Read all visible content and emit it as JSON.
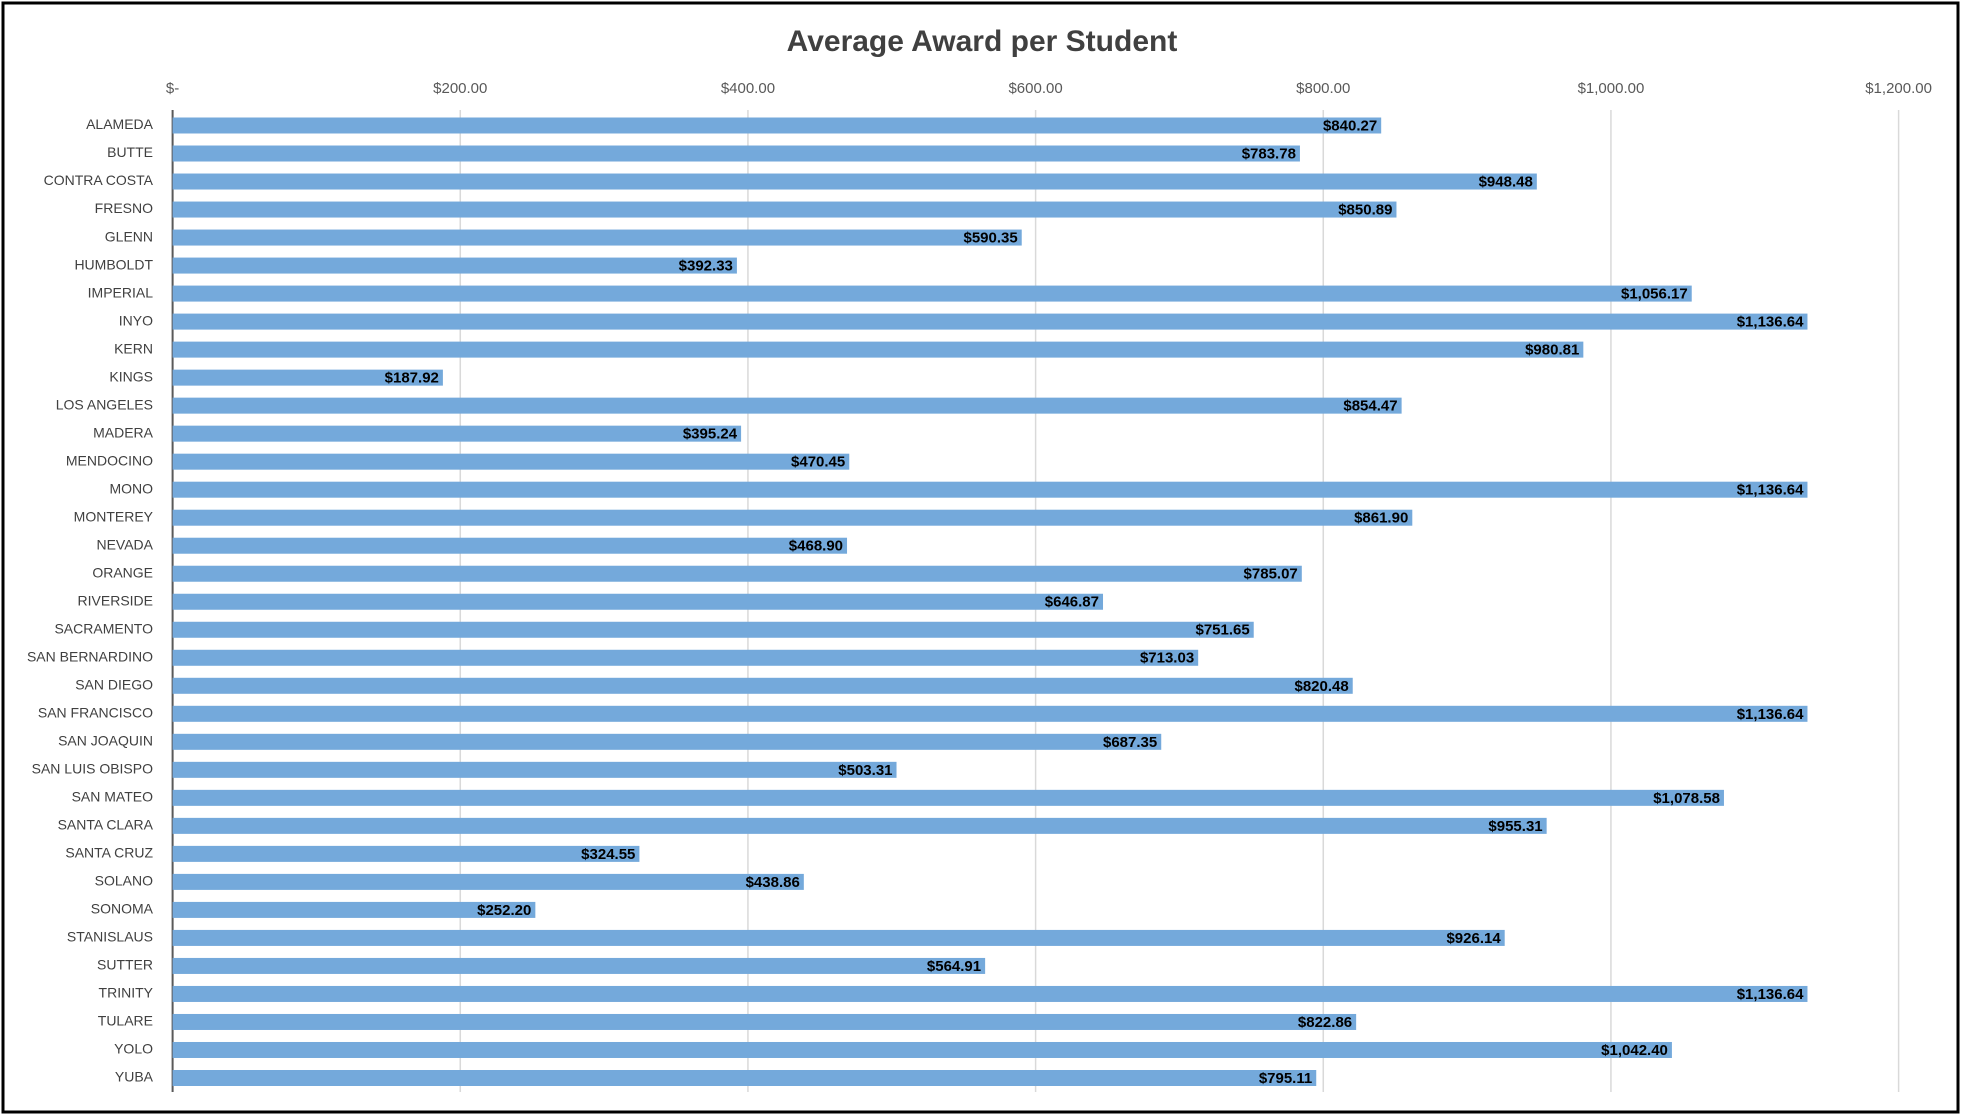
{
  "chart_data": {
    "type": "bar",
    "orientation": "horizontal",
    "title": "Average Award per Student",
    "categories": [
      "ALAMEDA",
      "BUTTE",
      "CONTRA COSTA",
      "FRESNO",
      "GLENN",
      "HUMBOLDT",
      "IMPERIAL",
      "INYO",
      "KERN",
      "KINGS",
      "LOS ANGELES",
      "MADERA",
      "MENDOCINO",
      "MONO",
      "MONTEREY",
      "NEVADA",
      "ORANGE",
      "RIVERSIDE",
      "SACRAMENTO",
      "SAN BERNARDINO",
      "SAN DIEGO",
      "SAN FRANCISCO",
      "SAN JOAQUIN",
      "SAN LUIS OBISPO",
      "SAN MATEO",
      "SANTA CLARA",
      "SANTA CRUZ",
      "SOLANO",
      "SONOMA",
      "STANISLAUS",
      "SUTTER",
      "TRINITY",
      "TULARE",
      "YOLO",
      "YUBA"
    ],
    "values": [
      840.27,
      783.78,
      948.48,
      850.89,
      590.35,
      392.33,
      1056.17,
      1136.64,
      980.81,
      187.92,
      854.47,
      395.24,
      470.45,
      1136.64,
      861.9,
      468.9,
      785.07,
      646.87,
      751.65,
      713.03,
      820.48,
      1136.64,
      687.35,
      503.31,
      1078.58,
      955.31,
      324.55,
      438.86,
      252.2,
      926.14,
      564.91,
      1136.64,
      822.86,
      1042.4,
      795.11
    ],
    "value_labels": [
      "$840.27",
      "$783.78",
      "$948.48",
      "$850.89",
      "$590.35",
      "$392.33",
      "$1,056.17",
      "$1,136.64",
      "$980.81",
      "$187.92",
      "$854.47",
      "$395.24",
      "$470.45",
      "$1,136.64",
      "$861.90",
      "$468.90",
      "$785.07",
      "$646.87",
      "$751.65",
      "$713.03",
      "$820.48",
      "$1,136.64",
      "$687.35",
      "$503.31",
      "$1,078.58",
      "$955.31",
      "$324.55",
      "$438.86",
      "$252.20",
      "$926.14",
      "$564.91",
      "$1,136.64",
      "$822.86",
      "$1,042.40",
      "$795.11"
    ],
    "color": "#74a9db",
    "xlim": [
      0,
      1200
    ],
    "xticks": [
      {
        "value": 0,
        "label": "$-"
      },
      {
        "value": 200,
        "label": "$200.00"
      },
      {
        "value": 400,
        "label": "$400.00"
      },
      {
        "value": 600,
        "label": "$600.00"
      },
      {
        "value": 800,
        "label": "$800.00"
      },
      {
        "value": 1000,
        "label": "$1,000.00"
      },
      {
        "value": 1200,
        "label": "$1,200.00"
      }
    ],
    "grid": true
  }
}
